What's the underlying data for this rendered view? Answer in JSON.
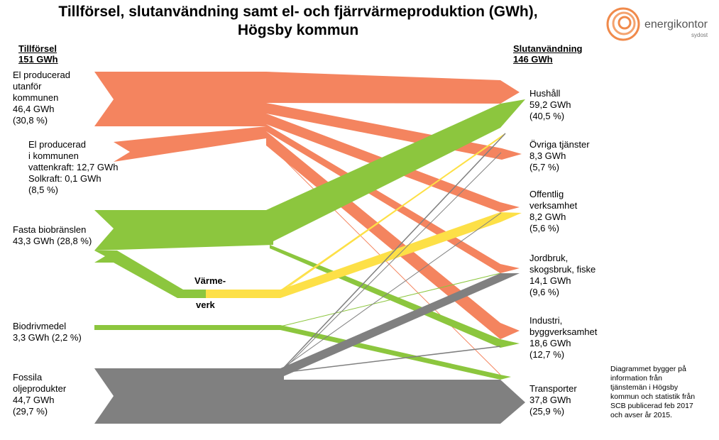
{
  "title": {
    "line1": "Tillförsel, slutanvändning samt el- och fjärrvärmeproduktion (GWh),",
    "line2": "Högsby kommun"
  },
  "supply_header": {
    "label": "Tillförsel",
    "total": "151 GWh"
  },
  "use_header": {
    "label": "Slutanvändning",
    "total": "146 GWh"
  },
  "sources": [
    {
      "lines": [
        "El producerad",
        "utanför",
        "kommunen",
        "46,4 GWh",
        "(30,8 %)"
      ],
      "color": "#f4845f"
    },
    {
      "lines": [
        "El producerad",
        "i kommunen",
        "vattenkraft: 12,7 GWh",
        "Solkraft: 0,1 GWh",
        "(8,5 %)"
      ],
      "color": "#f4845f"
    },
    {
      "lines": [
        "Fasta biobränslen",
        "43,3 GWh (28,8 %)"
      ],
      "color": "#8cc63e"
    },
    {
      "lines": [
        "Biodrivmedel",
        "3,3 GWh (2,2 %)"
      ],
      "color": "#8cc63e"
    },
    {
      "lines": [
        "Fossila",
        "oljeprodukter",
        "44,7 GWh",
        "(29,7 %)"
      ],
      "color": "#808080"
    }
  ],
  "sectors": [
    {
      "lines": [
        "Hushåll",
        "59,2 GWh",
        "(40,5 %)"
      ]
    },
    {
      "lines": [
        "Övriga tjänster",
        "8,3 GWh",
        "(5,7 %)"
      ]
    },
    {
      "lines": [
        "Offentlig",
        "verksamhet",
        "8,2 GWh",
        "(5,6 %)"
      ]
    },
    {
      "lines": [
        "Jordbruk,",
        "skogsbruk, fiske",
        "14,1 GWh",
        "(9,6 %)"
      ]
    },
    {
      "lines": [
        "Industri,",
        "byggverksamhet",
        "18,6 GWh",
        "(12,7 %)"
      ]
    },
    {
      "lines": [
        "Transporter",
        "37,8 GWh",
        "(25,9 %)"
      ]
    }
  ],
  "district_heating": {
    "label1": "Värme-",
    "label2": "verk"
  },
  "note": [
    "Diagrammet bygger på",
    "information från",
    "tjänstemän i Högsby",
    "kommun och statistik från",
    "SCB publicerad feb 2017",
    "och avser år 2015."
  ],
  "logo": {
    "text": "energikontor",
    "sub": "sydost",
    "color": "#f08a4b"
  },
  "colors": {
    "electricity": "#f4845f",
    "bio": "#8cc63e",
    "heat": "#fde047",
    "fossil": "#808080"
  }
}
